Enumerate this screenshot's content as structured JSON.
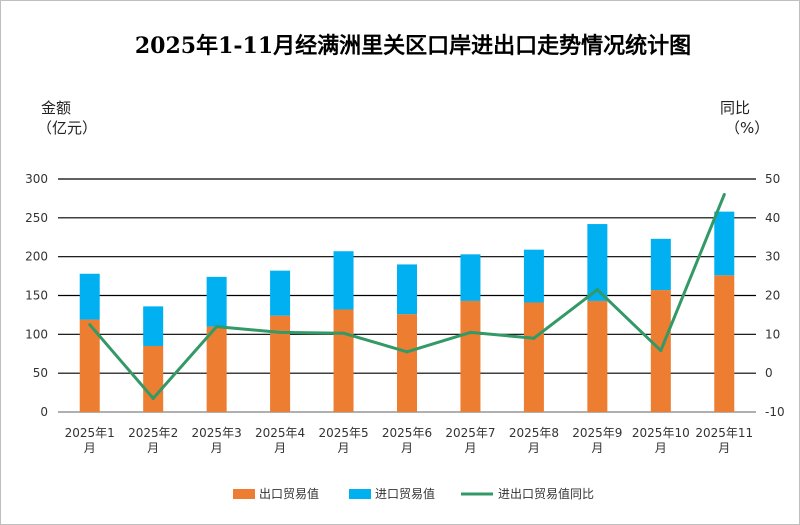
{
  "chart_data": {
    "type": "bar",
    "title": "2025年1-11月经满洲里关区口岸进出口走势情况统计图",
    "ylabel_left": [
      "金额",
      "（亿元）"
    ],
    "ylabel_right": [
      "同比",
      "（%）"
    ],
    "categories": [
      [
        "2025年1",
        "月"
      ],
      [
        "2025年2",
        "月"
      ],
      [
        "2025年3",
        "月"
      ],
      [
        "2025年4",
        "月"
      ],
      [
        "2025年5",
        "月"
      ],
      [
        "2025年6",
        "月"
      ],
      [
        "2025年7",
        "月"
      ],
      [
        "2025年8",
        "月"
      ],
      [
        "2025年9",
        "月"
      ],
      [
        "2025年10",
        "月"
      ],
      [
        "2025年11",
        "月"
      ]
    ],
    "ylim_left": [
      0,
      300
    ],
    "yticks_left": [
      0,
      50,
      100,
      150,
      200,
      250,
      300
    ],
    "ylim_right": [
      -10,
      50
    ],
    "yticks_right": [
      -10,
      0,
      10,
      20,
      30,
      40,
      50
    ],
    "grid": true,
    "legend_position": "bottom",
    "series": [
      {
        "name": "出口贸易值",
        "type": "bar",
        "stack": "total",
        "color": "#ED7D31",
        "values": [
          119,
          85,
          110,
          124,
          132,
          126,
          143,
          141,
          143,
          157,
          176
        ]
      },
      {
        "name": "进口贸易值",
        "type": "bar",
        "stack": "total",
        "color": "#00B0F0",
        "values": [
          59,
          51,
          64,
          58,
          75,
          64,
          60,
          68,
          99,
          66,
          82
        ]
      },
      {
        "name": "进出口贸易值同比",
        "type": "line",
        "axis": "right",
        "color": "#339966",
        "values": [
          12.5,
          -6.5,
          12,
          10.5,
          10.3,
          5.5,
          10.5,
          9,
          21.5,
          5.8,
          46
        ]
      }
    ]
  }
}
